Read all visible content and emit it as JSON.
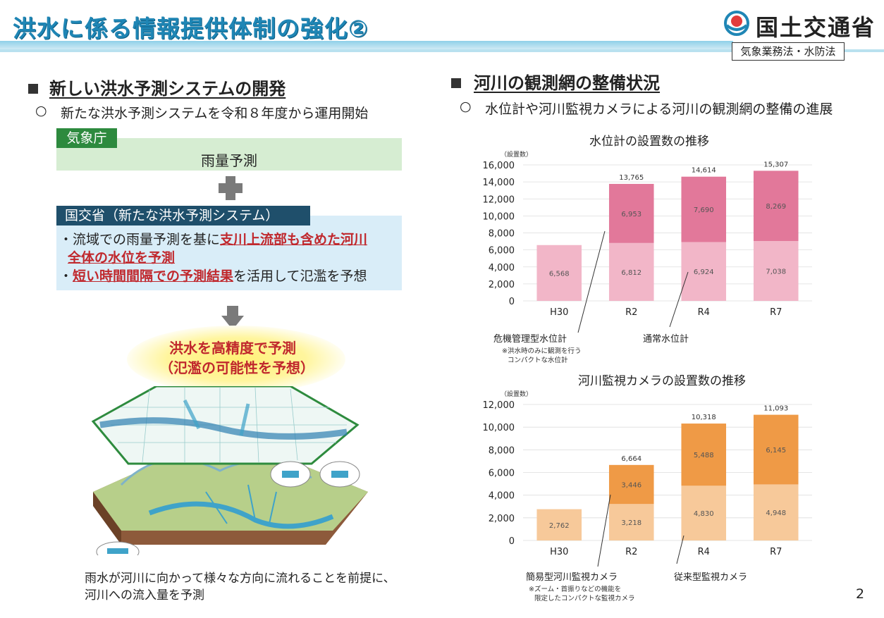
{
  "header": {
    "title": "洪水に係る情報提供体制の強化②",
    "ministry": "国土交通省",
    "law": "気象業務法・水防法"
  },
  "left": {
    "section_title": "新しい洪水予測システムの開発",
    "bullet": "○",
    "subtitle": "新たな洪水予測システムを令和８年度から運用開始",
    "jma_label": "気象庁",
    "rain_forecast": "雨量予測",
    "mlit_label": "国交省（新たな洪水予測システム）",
    "line1_prefix": "・流域での雨量予測を基に",
    "line1_red": "支川上流部も含めた河川",
    "line2_red": "全体の水位を予測",
    "line3_prefix": "・",
    "line3_red": "短い時間間隔での予測結果",
    "line3_suffix": "を活用して氾濫を予想",
    "result_line1": "洪水を高精度で予測",
    "result_line2": "（氾濫の可能性を予想）",
    "caption_line1": "雨水が河川に向かって様々な方向に流れることを前提に、",
    "caption_line2": "河川への流入量を予測"
  },
  "right": {
    "section_title": "河川の観測網の整備状況",
    "bullet": "○",
    "subtitle": "水位計や河川監視カメラによる河川の観測網の整備の進展"
  },
  "chart_data": [
    {
      "type": "bar",
      "title": "水位計の設置数の推移",
      "ylabel": "（設置数）",
      "ylim": [
        0,
        16000
      ],
      "yticks": [
        "0",
        "2,000",
        "4,000",
        "6,000",
        "8,000",
        "10,000",
        "12,000",
        "14,000",
        "16,000"
      ],
      "categories": [
        "H30",
        "R2",
        "R4",
        "R7"
      ],
      "stacked": true,
      "series": [
        {
          "name": "通常水位計",
          "values": [
            6568,
            6812,
            6924,
            7038
          ],
          "labels": [
            "6,568",
            "6,812",
            "6,924",
            "7,038"
          ],
          "color": "#f2b6c8"
        },
        {
          "name": "危機管理型水位計",
          "values": [
            0,
            6953,
            7690,
            8269
          ],
          "labels": [
            "",
            "6,953",
            "7,690",
            "8,269"
          ],
          "color": "#e2789a"
        }
      ],
      "totals": [
        "",
        "13,765",
        "14,614",
        "15,307"
      ],
      "annotation_left": "危機管理型水位計",
      "annotation_left_note1": "※洪水時のみに観測を行う",
      "annotation_left_note2": "コンパクトな水位計",
      "annotation_right": "通常水位計"
    },
    {
      "type": "bar",
      "title": "河川監視カメラの設置数の推移",
      "ylabel": "（設置数）",
      "ylim": [
        0,
        12000
      ],
      "yticks": [
        "0",
        "2,000",
        "4,000",
        "6,000",
        "8,000",
        "10,000",
        "12,000"
      ],
      "categories": [
        "H30",
        "R2",
        "R4",
        "R7"
      ],
      "stacked": true,
      "series": [
        {
          "name": "従来型監視カメラ",
          "values": [
            2762,
            3218,
            4830,
            4948
          ],
          "labels": [
            "2,762",
            "3,218",
            "4,830",
            "4,948"
          ],
          "color": "#f7c99a"
        },
        {
          "name": "簡易型河川監視カメラ",
          "values": [
            0,
            3446,
            5488,
            6145
          ],
          "labels": [
            "",
            "3,446",
            "5,488",
            "6,145"
          ],
          "color": "#ef9a46"
        }
      ],
      "totals": [
        "",
        "6,664",
        "10,318",
        "11,093"
      ],
      "annotation_left": "簡易型河川監視カメラ",
      "annotation_left_note1": "※ズーム・首振りなどの機能を",
      "annotation_left_note2": "限定したコンパクトな監視カメラ",
      "annotation_right": "従来型監視カメラ"
    }
  ],
  "page_number": "2"
}
